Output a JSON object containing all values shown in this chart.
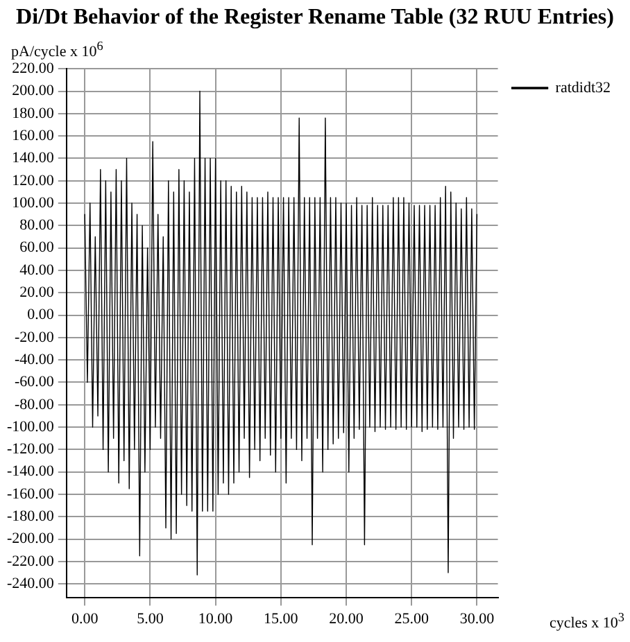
{
  "chart_data": {
    "type": "line",
    "title": "Di/Dt Behavior of the Register Rename Table (32 RUU Entries)",
    "ylabel": "pA/cycle x 10$^{6}$",
    "xlabel": "cycles x 10$^{3}$",
    "x": [
      0,
      0.2,
      0.4,
      0.6,
      0.8,
      1,
      1.2,
      1.4,
      1.6,
      1.8,
      2,
      2.2,
      2.4,
      2.6,
      2.8,
      3,
      3.2,
      3.4,
      3.6,
      3.8,
      4,
      4.2,
      4.4,
      4.6,
      4.8,
      5,
      5.2,
      5.4,
      5.6,
      5.8,
      6,
      6.2,
      6.4,
      6.6,
      6.8,
      7,
      7.2,
      7.4,
      7.6,
      7.8,
      8,
      8.2,
      8.4,
      8.6,
      8.8,
      9,
      9.2,
      9.4,
      9.6,
      9.8,
      10,
      10.2,
      10.4,
      10.6,
      10.8,
      11,
      11.2,
      11.4,
      11.6,
      11.8,
      12,
      12.2,
      12.4,
      12.6,
      12.8,
      13,
      13.2,
      13.4,
      13.6,
      13.8,
      14,
      14.2,
      14.4,
      14.6,
      14.8,
      15,
      15.2,
      15.4,
      15.6,
      15.8,
      16,
      16.2,
      16.4,
      16.6,
      16.8,
      17,
      17.2,
      17.4,
      17.6,
      17.8,
      18,
      18.2,
      18.4,
      18.6,
      18.8,
      19,
      19.2,
      19.4,
      19.6,
      19.8,
      20,
      20.2,
      20.4,
      20.6,
      20.8,
      21,
      21.2,
      21.4,
      21.6,
      21.8,
      22,
      22.2,
      22.4,
      22.6,
      22.8,
      23,
      23.2,
      23.4,
      23.6,
      23.8,
      24,
      24.2,
      24.4,
      24.6,
      24.8,
      25,
      25.2,
      25.4,
      25.6,
      25.8,
      26,
      26.2,
      26.4,
      26.6,
      26.8,
      27,
      27.2,
      27.4,
      27.6,
      27.8,
      28,
      28.2,
      28.4,
      28.6,
      28.8,
      29,
      29.2,
      29.4,
      29.6,
      29.8,
      30
    ],
    "series": [
      {
        "name": "ratdidt32",
        "color": "#000000",
        "values": [
          90,
          -60,
          100,
          -100,
          70,
          -90,
          130,
          -120,
          120,
          -140,
          110,
          -110,
          130,
          -150,
          120,
          -130,
          140,
          -155,
          100,
          -120,
          90,
          -215,
          80,
          -140,
          60,
          -120,
          155,
          -100,
          90,
          -110,
          70,
          -190,
          120,
          -200,
          110,
          -195,
          130,
          -160,
          120,
          -170,
          110,
          -175,
          140,
          -232,
          200,
          -175,
          140,
          -175,
          140,
          -175,
          140,
          -160,
          120,
          -150,
          120,
          -160,
          115,
          -150,
          110,
          -140,
          115,
          -110,
          110,
          -145,
          105,
          -120,
          105,
          -130,
          105,
          -110,
          110,
          -125,
          105,
          -140,
          105,
          -110,
          105,
          -150,
          105,
          -110,
          105,
          -120,
          176,
          -130,
          105,
          -110,
          105,
          -205,
          105,
          -110,
          105,
          -140,
          176,
          -120,
          105,
          -115,
          105,
          -110,
          100,
          -105,
          100,
          -140,
          98,
          -110,
          105,
          -102,
          98,
          -205,
          98,
          -100,
          105,
          -104,
          98,
          -100,
          98,
          -102,
          98,
          -100,
          105,
          -102,
          105,
          -100,
          105,
          -102,
          100,
          -100,
          98,
          -100,
          98,
          -104,
          98,
          -102,
          98,
          -100,
          98,
          -102,
          105,
          -100,
          115,
          -230,
          110,
          -110,
          100,
          -100,
          95,
          -102,
          105,
          -100,
          95,
          -102,
          90
        ]
      }
    ],
    "xlim": [
      -1.4,
      31.6
    ],
    "ylim": [
      -252,
      220
    ],
    "xticks": [
      {
        "value": 0,
        "label": "0.00"
      },
      {
        "value": 5,
        "label": "5.00"
      },
      {
        "value": 10,
        "label": "10.00"
      },
      {
        "value": 15,
        "label": "15.00"
      },
      {
        "value": 20,
        "label": "20.00"
      },
      {
        "value": 25,
        "label": "25.00"
      },
      {
        "value": 30,
        "label": "30.00"
      }
    ],
    "yticks": [
      {
        "value": -240,
        "label": "-240.00"
      },
      {
        "value": -220,
        "label": "-220.00"
      },
      {
        "value": -200,
        "label": "-200.00"
      },
      {
        "value": -180,
        "label": "-180.00"
      },
      {
        "value": -160,
        "label": "-160.00"
      },
      {
        "value": -140,
        "label": "-140.00"
      },
      {
        "value": -120,
        "label": "-120.00"
      },
      {
        "value": -100,
        "label": "-100.00"
      },
      {
        "value": -80,
        "label": "-80.00"
      },
      {
        "value": -60,
        "label": "-60.00"
      },
      {
        "value": -40,
        "label": "-40.00"
      },
      {
        "value": -20,
        "label": "-20.00"
      },
      {
        "value": 0,
        "label": "0.00"
      },
      {
        "value": 20,
        "label": "20.00"
      },
      {
        "value": 40,
        "label": "40.00"
      },
      {
        "value": 60,
        "label": "60.00"
      },
      {
        "value": 80,
        "label": "80.00"
      },
      {
        "value": 100,
        "label": "100.00"
      },
      {
        "value": 120,
        "label": "120.00"
      },
      {
        "value": 140,
        "label": "140.00"
      },
      {
        "value": 160,
        "label": "160.00"
      },
      {
        "value": 180,
        "label": "180.00"
      },
      {
        "value": 200,
        "label": "200.00"
      },
      {
        "value": 220,
        "label": "220.00"
      }
    ],
    "grid": true,
    "legend": "top right",
    "marker": "none",
    "line_style": "solid"
  }
}
